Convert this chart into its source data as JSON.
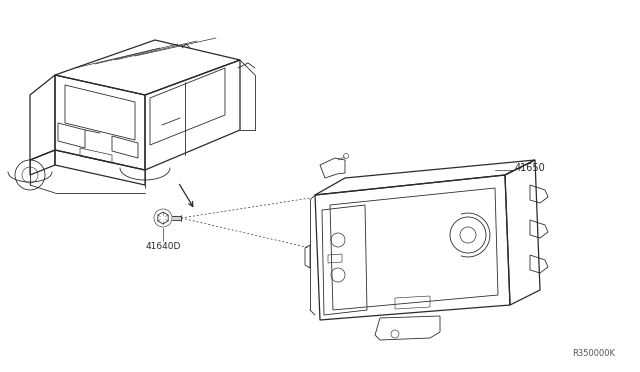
{
  "bg_color": "#ffffff",
  "line_color": "#2a2a2a",
  "label_color": "#2a2a2a",
  "watermark": "R350000K",
  "part_41650_label": "41650",
  "part_41640D_label": "41640D",
  "fig_width": 6.4,
  "fig_height": 3.72,
  "dpi": 100
}
